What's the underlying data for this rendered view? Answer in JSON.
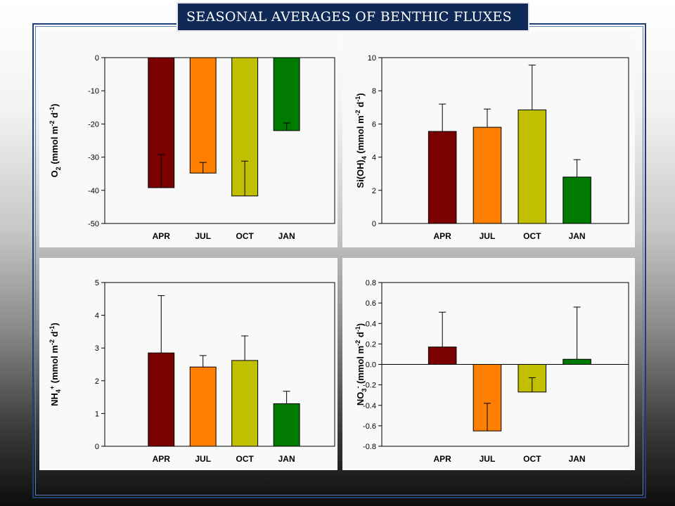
{
  "title": "SEASONAL AVERAGES OF BENTHIC FLUXES",
  "colors": {
    "APR": "#7b0000",
    "JUL": "#ff7f00",
    "OCT": "#c0c000",
    "JAN": "#007a00"
  },
  "chart_data": [
    {
      "type": "bar",
      "ylabel": {
        "base": "O",
        "sub": "2",
        "rest": " (mmol m",
        "sup1": "-2",
        "mid": " d",
        "sup2": "-1",
        "end": ")"
      },
      "categories": [
        "APR",
        "JUL",
        "OCT",
        "JAN"
      ],
      "values": [
        -39.2,
        -34.8,
        -41.7,
        -22.0
      ],
      "errors": [
        10.0,
        3.2,
        10.5,
        2.3
      ],
      "ylim": [
        -50,
        0
      ],
      "yticks": [
        0,
        -10,
        -20,
        -30,
        -40,
        -50
      ],
      "ytick_labels": [
        "0",
        "-10",
        "-20",
        "-30",
        "-40",
        "-50"
      ],
      "zero_line": false
    },
    {
      "type": "bar",
      "ylabel": {
        "base": "Si(OH)",
        "sub": "4",
        "rest": " (mmol m",
        "sup1": "-2",
        "mid": " d",
        "sup2": "-1",
        "end": ")"
      },
      "categories": [
        "APR",
        "JUL",
        "OCT",
        "JAN"
      ],
      "values": [
        5.55,
        5.8,
        6.85,
        2.8
      ],
      "errors": [
        1.65,
        1.1,
        2.7,
        1.05
      ],
      "ylim": [
        0,
        10
      ],
      "yticks": [
        0,
        2,
        4,
        6,
        8,
        10
      ],
      "ytick_labels": [
        "0",
        "2",
        "4",
        "6",
        "8",
        "10"
      ],
      "zero_line": false
    },
    {
      "type": "bar",
      "ylabel": {
        "base": "NH",
        "sub": "4",
        "supb": "+",
        "rest": " (mmol m",
        "sup1": "-2",
        "mid": " d",
        "sup2": "-1",
        "end": ")"
      },
      "categories": [
        "APR",
        "JUL",
        "OCT",
        "JAN"
      ],
      "values": [
        2.85,
        2.42,
        2.62,
        1.3
      ],
      "errors": [
        1.75,
        0.35,
        0.75,
        0.38
      ],
      "ylim": [
        0,
        5
      ],
      "yticks": [
        0,
        1,
        2,
        3,
        4,
        5
      ],
      "ytick_labels": [
        "0",
        "1",
        "2",
        "3",
        "4",
        "5"
      ],
      "zero_line": false
    },
    {
      "type": "bar",
      "ylabel": {
        "base": "NO",
        "sub": "3",
        "supb": "-",
        "rest": " (mmol m",
        "sup1": "-2",
        "mid": " d",
        "sup2": "-1",
        "end": ")"
      },
      "categories": [
        "APR",
        "JUL",
        "OCT",
        "JAN"
      ],
      "values": [
        0.17,
        -0.65,
        -0.27,
        0.05
      ],
      "errors": [
        0.34,
        0.27,
        0.14,
        0.51
      ],
      "ylim": [
        -0.8,
        0.8
      ],
      "yticks": [
        0.8,
        0.6,
        0.4,
        0.2,
        0.0,
        -0.2,
        -0.4,
        -0.6,
        -0.8
      ],
      "ytick_labels": [
        "0.8",
        "0.6",
        "0.4",
        "0.2",
        "0.0",
        "-0.2",
        "-0.4",
        "-0.6",
        "-0.8"
      ],
      "zero_line": true
    }
  ]
}
